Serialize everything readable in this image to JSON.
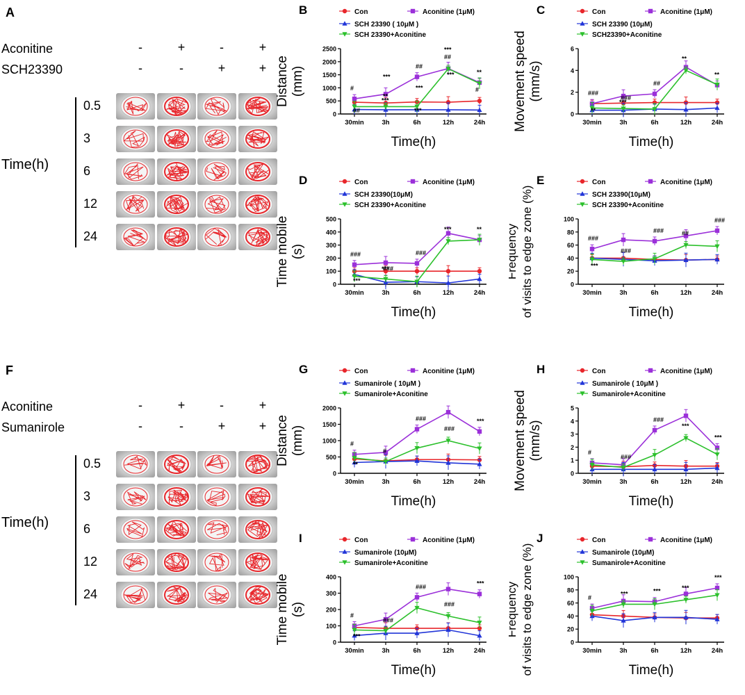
{
  "experiment_top": {
    "letter": "A",
    "rows": [
      {
        "label": "Aconitine",
        "signs": [
          "-",
          "+",
          "-",
          "+"
        ]
      },
      {
        "label": "SCH23390",
        "signs": [
          "-",
          "-",
          "+",
          "+"
        ]
      }
    ],
    "time_axis_label": "Time(h)",
    "time_points": [
      "0.5",
      "3",
      "6",
      "12",
      "24"
    ]
  },
  "experiment_bottom": {
    "letter": "F",
    "rows": [
      {
        "label": "Aconitine",
        "signs": [
          "-",
          "+",
          "-",
          "+"
        ]
      },
      {
        "label": "Sumanirole",
        "signs": [
          "-",
          "-",
          "+",
          "+"
        ]
      }
    ],
    "time_axis_label": "Time(h)",
    "time_points": [
      "0.5",
      "3",
      "6",
      "12",
      "24"
    ]
  },
  "chart_data": [
    {
      "id": "B",
      "type": "line",
      "letter": "B",
      "ylabel": "Distance (mm)",
      "xlabel": "Time(h)",
      "categories": [
        "30min",
        "3h",
        "6h",
        "12h",
        "24h"
      ],
      "ylim": [
        0,
        2500
      ],
      "yticks": [
        0,
        500,
        1000,
        1500,
        2000,
        2500
      ],
      "legend": [
        "Con",
        "Aconitine (1μM)",
        "SCH 23390 ( 10μM )",
        "SCH 23390+Aconitine"
      ],
      "series": [
        {
          "name": "Con",
          "color": "#e8262b",
          "marker": "circle",
          "values": [
            450,
            420,
            460,
            450,
            500
          ]
        },
        {
          "name": "Aconitine (1μM)",
          "color": "#9b30d9",
          "marker": "square",
          "values": [
            580,
            760,
            1420,
            1740,
            1200
          ]
        },
        {
          "name": "SCH 23390 ( 10μM )",
          "color": "#2135d8",
          "marker": "triangle",
          "values": [
            170,
            160,
            160,
            160,
            150
          ]
        },
        {
          "name": "SCH 23390+Aconitine",
          "color": "#2cc02c",
          "marker": "tri-down",
          "values": [
            280,
            280,
            280,
            1730,
            1170
          ]
        }
      ],
      "annotations": [
        "#",
        "**",
        "##",
        "##",
        "**",
        "##",
        "***",
        "***",
        "***",
        "#",
        "***",
        "***",
        "***"
      ]
    },
    {
      "id": "C",
      "type": "line",
      "letter": "C",
      "ylabel": "Movement speed (mm/s)",
      "xlabel": "Time(h)",
      "categories": [
        "30min",
        "3h",
        "6h",
        "12h",
        "24h"
      ],
      "ylim": [
        0,
        6
      ],
      "yticks": [
        0,
        2,
        4,
        6
      ],
      "legend": [
        "Con",
        "Aconitine (1μM)",
        "SCH 23390 (10μM)",
        "SCH23390+Aconitine"
      ],
      "series": [
        {
          "name": "Con",
          "color": "#e8262b",
          "marker": "circle",
          "values": [
            0.95,
            1.0,
            1.05,
            1.05,
            1.05
          ]
        },
        {
          "name": "Aconitine (1μM)",
          "color": "#9b30d9",
          "marker": "square",
          "values": [
            0.95,
            1.65,
            1.85,
            4.3,
            2.65
          ]
        },
        {
          "name": "SCH 23390 (10μM)",
          "color": "#2135d8",
          "marker": "triangle",
          "values": [
            0.35,
            0.35,
            0.45,
            0.4,
            0.55
          ]
        },
        {
          "name": "SCH23390+Aconitine",
          "color": "#2cc02c",
          "marker": "tri-down",
          "values": [
            0.55,
            0.5,
            0.45,
            4.0,
            2.7
          ]
        }
      ],
      "annotations": [
        "###",
        "###",
        "##",
        "**",
        "**",
        "**",
        "***"
      ]
    },
    {
      "id": "D",
      "type": "line",
      "letter": "D",
      "ylabel": "Time mobile (s)",
      "xlabel": "Time(h)",
      "categories": [
        "30min",
        "3h",
        "6h",
        "12h",
        "24h"
      ],
      "ylim": [
        0,
        500
      ],
      "yticks": [
        0,
        100,
        200,
        300,
        400,
        500
      ],
      "legend": [
        "Con",
        "Aconitine (1μM)",
        "SCH 23390(10μM)",
        "SCH 23390+Aconitine"
      ],
      "series": [
        {
          "name": "Con",
          "color": "#e8262b",
          "marker": "circle",
          "values": [
            100,
            100,
            100,
            100,
            100
          ]
        },
        {
          "name": "Aconitine (1μM)",
          "color": "#9b30d9",
          "marker": "square",
          "values": [
            150,
            165,
            160,
            390,
            340
          ]
        },
        {
          "name": "SCH 23390(10μM)",
          "color": "#2135d8",
          "marker": "triangle",
          "values": [
            75,
            15,
            20,
            10,
            40
          ]
        },
        {
          "name": "SCH 23390+Aconitine",
          "color": "#2cc02c",
          "marker": "tri-down",
          "values": [
            60,
            40,
            20,
            330,
            340
          ]
        }
      ],
      "annotations": [
        "###",
        "###",
        "###",
        "***",
        "**",
        "***",
        "***"
      ]
    },
    {
      "id": "E",
      "type": "line",
      "letter": "E",
      "ylabel": "Frequency of visits to edge zone (%)",
      "xlabel": "Time(h)",
      "categories": [
        "30min",
        "3h",
        "6h",
        "12h",
        "24h"
      ],
      "ylim": [
        0,
        100
      ],
      "yticks": [
        0,
        20,
        40,
        60,
        80,
        100
      ],
      "legend": [
        "Con",
        "Aconitine (1μM)",
        "SCH 23390(10μM)",
        "SCH 23390+Aconitine"
      ],
      "series": [
        {
          "name": "Con",
          "color": "#e8262b",
          "marker": "circle",
          "values": [
            40,
            40,
            38,
            37,
            38
          ]
        },
        {
          "name": "Aconitine (1μM)",
          "color": "#9b30d9",
          "marker": "square",
          "values": [
            54,
            68,
            66,
            74,
            82
          ]
        },
        {
          "name": "SCH 23390(10μM)",
          "color": "#2135d8",
          "marker": "triangle",
          "values": [
            40,
            38,
            36,
            37,
            38
          ]
        },
        {
          "name": "SCH 23390+Aconitine",
          "color": "#2cc02c",
          "marker": "tri-down",
          "values": [
            38,
            35,
            39,
            60,
            58
          ]
        }
      ],
      "annotations": [
        "###",
        "###",
        "###",
        "##",
        "###",
        "***"
      ]
    },
    {
      "id": "G",
      "type": "line",
      "letter": "G",
      "ylabel": "Distance (mm)",
      "xlabel": "Time(h)",
      "categories": [
        "30min",
        "3h",
        "6h",
        "12h",
        "24h"
      ],
      "ylim": [
        0,
        2000
      ],
      "yticks": [
        0,
        500,
        1000,
        1500,
        2000
      ],
      "legend": [
        "Con",
        "Aconitine (1μM)",
        "Sumanirole ( 10μM )",
        "Sumanirole+Aconitine"
      ],
      "series": [
        {
          "name": "Con",
          "color": "#e8262b",
          "marker": "circle",
          "values": [
            440,
            380,
            420,
            420,
            410
          ]
        },
        {
          "name": "Aconitine (1μM)",
          "color": "#9b30d9",
          "marker": "square",
          "values": [
            580,
            640,
            1350,
            1870,
            1280
          ]
        },
        {
          "name": "Sumanirole ( 10μM )",
          "color": "#2135d8",
          "marker": "triangle",
          "values": [
            330,
            360,
            380,
            320,
            280
          ]
        },
        {
          "name": "Sumanirole+Aconitine",
          "color": "#2cc02c",
          "marker": "tri-down",
          "values": [
            470,
            360,
            770,
            1000,
            760
          ]
        }
      ],
      "annotations": [
        "#",
        "#",
        "###",
        "###",
        "***",
        "**"
      ]
    },
    {
      "id": "H",
      "type": "line",
      "letter": "H",
      "ylabel": "Movement speed (mm/s)",
      "xlabel": "Time(h)",
      "categories": [
        "30min",
        "3h",
        "6h",
        "12h",
        "24h"
      ],
      "ylim": [
        0,
        5
      ],
      "yticks": [
        0,
        1,
        2,
        3,
        4,
        5
      ],
      "legend": [
        "Con",
        "Aconitine (1μM)",
        "Sumanirole ( 10μM )",
        "Sumanirole+Aconitine"
      ],
      "series": [
        {
          "name": "Con",
          "color": "#e8262b",
          "marker": "circle",
          "values": [
            0.55,
            0.5,
            0.6,
            0.55,
            0.55
          ]
        },
        {
          "name": "Aconitine (1μM)",
          "color": "#9b30d9",
          "marker": "square",
          "values": [
            0.8,
            0.65,
            3.3,
            4.4,
            1.95
          ]
        },
        {
          "name": "Sumanirole ( 10μM )",
          "color": "#2135d8",
          "marker": "triangle",
          "values": [
            0.3,
            0.3,
            0.3,
            0.3,
            0.4
          ]
        },
        {
          "name": "Sumanirole+Aconitine",
          "color": "#2cc02c",
          "marker": "tri-down",
          "values": [
            0.65,
            0.45,
            1.4,
            2.7,
            1.45
          ]
        }
      ],
      "annotations": [
        "#",
        "###",
        "###",
        "***",
        "***"
      ]
    },
    {
      "id": "I",
      "type": "line",
      "letter": "I",
      "ylabel": "Time mobile (s)",
      "xlabel": "Time(h)",
      "categories": [
        "30min",
        "3h",
        "6h",
        "12h",
        "24h"
      ],
      "ylim": [
        0,
        400
      ],
      "yticks": [
        0,
        100,
        200,
        300,
        400
      ],
      "legend": [
        "Con",
        "Aconitine (1μM)",
        "Sumanirole (10μM)",
        "Sumanirole+Aconitine"
      ],
      "series": [
        {
          "name": "Con",
          "color": "#e8262b",
          "marker": "circle",
          "values": [
            90,
            85,
            85,
            85,
            85
          ]
        },
        {
          "name": "Aconitine (1μM)",
          "color": "#9b30d9",
          "marker": "square",
          "values": [
            100,
            140,
            275,
            325,
            295
          ]
        },
        {
          "name": "Sumanirole (10μM)",
          "color": "#2135d8",
          "marker": "triangle",
          "values": [
            40,
            55,
            55,
            75,
            40
          ]
        },
        {
          "name": "Sumanirole+Aconitine",
          "color": "#2cc02c",
          "marker": "tri-down",
          "values": [
            75,
            70,
            210,
            160,
            120
          ]
        }
      ],
      "annotations": [
        "#",
        "###",
        "###",
        "###",
        "***",
        "***"
      ]
    },
    {
      "id": "J",
      "type": "line",
      "letter": "J",
      "ylabel": "Frequency of visits to edge zone (%)",
      "xlabel": "Time(h)",
      "categories": [
        "30min",
        "3h",
        "6h",
        "12h",
        "24h"
      ],
      "ylim": [
        0,
        100
      ],
      "yticks": [
        0,
        20,
        40,
        60,
        80,
        100
      ],
      "legend": [
        "Con",
        "Aconitine (1μM)",
        "Sumanirole (10μM)",
        "Sumanirole+Aconitine"
      ],
      "series": [
        {
          "name": "Con",
          "color": "#e8262b",
          "marker": "circle",
          "values": [
            42,
            40,
            38,
            37,
            37
          ]
        },
        {
          "name": "Aconitine (1μM)",
          "color": "#9b30d9",
          "marker": "square",
          "values": [
            52,
            63,
            62,
            74,
            83
          ]
        },
        {
          "name": "Sumanirole (10μM)",
          "color": "#2135d8",
          "marker": "triangle",
          "values": [
            40,
            33,
            38,
            38,
            35
          ]
        },
        {
          "name": "Sumanirole+Aconitine",
          "color": "#2cc02c",
          "marker": "tri-down",
          "values": [
            48,
            58,
            58,
            65,
            72
          ]
        }
      ],
      "annotations": [
        "#",
        "***",
        "***",
        "***",
        "***"
      ]
    }
  ]
}
